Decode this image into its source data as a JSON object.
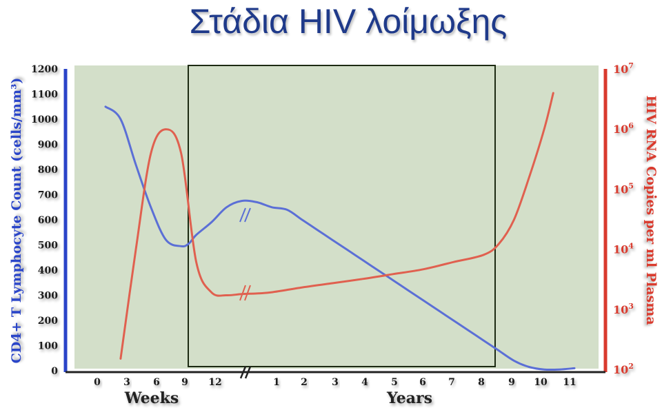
{
  "chart_data": {
    "type": "line",
    "title": "Στάδια HIV λοίμωξης",
    "ylabel_left": "CD4+ T Lymphocyte Count (cells/mm³)",
    "ylabel_right": "HIV RNA Copies per ml Plasma",
    "xlabel_weeks": "Weeks",
    "xlabel_years": "Years",
    "left_ticks": [
      "1200",
      "1100",
      "1000",
      "900",
      "800",
      "700",
      "600",
      "500",
      "400",
      "300",
      "200",
      "100",
      "0"
    ],
    "right_ticks": [
      {
        "base": "10",
        "exp": "7"
      },
      {
        "base": "10",
        "exp": "6"
      },
      {
        "base": "10",
        "exp": "5"
      },
      {
        "base": "10",
        "exp": "4"
      },
      {
        "base": "10",
        "exp": "3"
      },
      {
        "base": "10",
        "exp": "2"
      }
    ],
    "x_ticks": [
      "0",
      "3",
      "6",
      "9",
      "12",
      "1",
      "2",
      "3",
      "4",
      "5",
      "6",
      "7",
      "8",
      "9",
      "10",
      "11"
    ],
    "ylim_left": [
      0,
      1200
    ],
    "ylim_right_log10": [
      2,
      7
    ],
    "series": [
      {
        "name": "CD4",
        "color": "#5b6fd6",
        "points": [
          [
            0,
            1050
          ],
          [
            1,
            1000
          ],
          [
            2,
            820
          ],
          [
            3,
            650
          ],
          [
            4,
            520
          ],
          [
            5,
            495
          ],
          [
            5.5,
            505
          ],
          [
            6,
            540
          ],
          [
            7,
            590
          ],
          [
            8,
            650
          ],
          [
            9,
            675
          ],
          [
            10,
            670
          ],
          [
            11,
            650
          ],
          [
            12,
            640
          ],
          [
            13,
            600
          ],
          [
            14,
            560
          ],
          [
            15,
            520
          ],
          [
            16,
            480
          ],
          [
            17,
            440
          ],
          [
            18,
            400
          ],
          [
            19,
            360
          ],
          [
            20,
            320
          ],
          [
            21,
            280
          ],
          [
            22,
            240
          ],
          [
            23,
            200
          ],
          [
            24,
            160
          ],
          [
            25,
            120
          ],
          [
            26,
            80
          ],
          [
            27,
            40
          ],
          [
            28,
            15
          ],
          [
            29,
            5
          ],
          [
            30,
            5
          ],
          [
            31,
            10
          ]
        ]
      },
      {
        "name": "HIV RNA",
        "color": "#e0604f",
        "points": [
          [
            1,
            2.2
          ],
          [
            2,
            4.0
          ],
          [
            3,
            5.6
          ],
          [
            4,
            6.0
          ],
          [
            5,
            5.6
          ],
          [
            6,
            3.8
          ],
          [
            7,
            3.3
          ],
          [
            8,
            3.25
          ],
          [
            9,
            3.27
          ],
          [
            10,
            3.28
          ],
          [
            11,
            3.3
          ],
          [
            13,
            3.38
          ],
          [
            15,
            3.45
          ],
          [
            17,
            3.52
          ],
          [
            19,
            3.6
          ],
          [
            21,
            3.68
          ],
          [
            23,
            3.8
          ],
          [
            25,
            3.92
          ],
          [
            26,
            4.1
          ],
          [
            27,
            4.5
          ],
          [
            28,
            5.2
          ],
          [
            29,
            6.0
          ],
          [
            29.6,
            6.6
          ]
        ]
      }
    ]
  }
}
